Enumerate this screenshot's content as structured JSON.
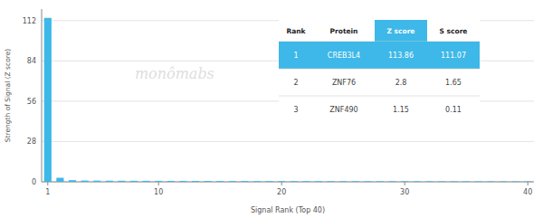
{
  "chart_data": {
    "type": "bar",
    "xlabel": "Signal Rank (Top 40)",
    "ylabel": "Strength of Signal (Z score)",
    "x": [
      1,
      2,
      3,
      4,
      5,
      6,
      7,
      8,
      9,
      10,
      11,
      12,
      13,
      14,
      15,
      16,
      17,
      18,
      19,
      20,
      21,
      22,
      23,
      24,
      25,
      26,
      27,
      28,
      29,
      30,
      31,
      32,
      33,
      34,
      35,
      36,
      37,
      38,
      39,
      40
    ],
    "values": [
      113.86,
      2.8,
      1.15,
      0.9,
      0.85,
      0.8,
      0.75,
      0.72,
      0.7,
      0.68,
      0.65,
      0.63,
      0.61,
      0.59,
      0.57,
      0.55,
      0.53,
      0.51,
      0.5,
      0.49,
      0.48,
      0.47,
      0.46,
      0.45,
      0.44,
      0.43,
      0.42,
      0.41,
      0.4,
      0.39,
      0.38,
      0.37,
      0.36,
      0.35,
      0.34,
      0.33,
      0.32,
      0.31,
      0.3,
      0.29
    ],
    "color": "#3db8e8",
    "xlim": [
      0.5,
      40.5
    ],
    "ylim": [
      0,
      120
    ],
    "xticks": [
      1,
      10,
      20,
      30,
      40
    ],
    "yticks": [
      0,
      28,
      56,
      84,
      112
    ],
    "grid": true,
    "annotations": [
      "monômabs"
    ],
    "table": {
      "headers": [
        "Rank",
        "Protein",
        "Z score",
        "S score"
      ],
      "rows": [
        [
          "1",
          "CREB3L4",
          "113.86",
          "111.07"
        ],
        [
          "2",
          "ZNF76",
          "2.8",
          "1.65"
        ],
        [
          "3",
          "ZNF490",
          "1.15",
          "0.11"
        ]
      ]
    }
  }
}
